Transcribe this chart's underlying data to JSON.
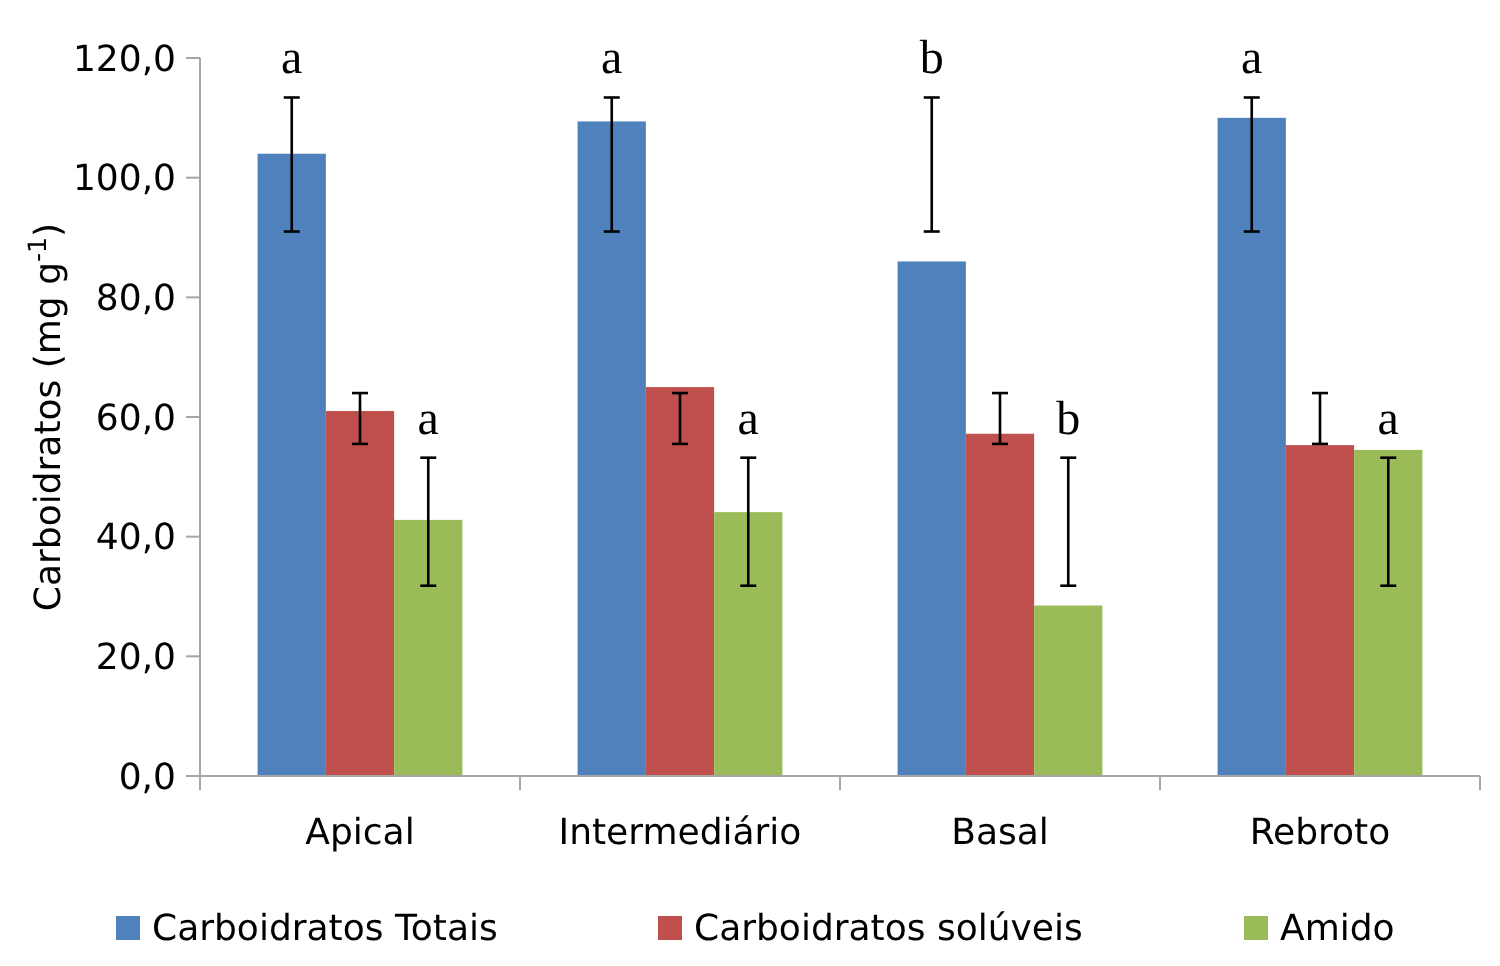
{
  "chart_data": {
    "type": "bar",
    "ylabel": "Carboidratos (mg g$^{-1}$)",
    "categories": [
      "Apical",
      "Intermediário",
      "Basal",
      "Rebroto"
    ],
    "series": [
      {
        "name": "Carboidratos Totais",
        "color": "#4f81bd",
        "values": [
          104,
          109.4,
          86,
          110
        ],
        "errors": [
          [
            91,
            113.4
          ],
          [
            91,
            113.4
          ],
          [
            91,
            113.4
          ],
          [
            91,
            113.4
          ]
        ]
      },
      {
        "name": "Carboidratos solúveis",
        "color": "#c0504d",
        "values": [
          61,
          65,
          57.2,
          55.3
        ],
        "errors": [
          [
            55.5,
            64
          ],
          [
            55.5,
            64
          ],
          [
            55.5,
            64
          ],
          [
            55.5,
            64
          ]
        ]
      },
      {
        "name": "Amido",
        "color": "#9bbb59",
        "values": [
          42.8,
          44.1,
          28.5,
          54.5
        ],
        "errors": [
          [
            31.8,
            53.2
          ],
          [
            31.8,
            53.2
          ],
          [
            31.8,
            53.2
          ],
          [
            31.8,
            53.2
          ]
        ]
      }
    ],
    "ylim": [
      0,
      120
    ],
    "yticks": [
      {
        "value": 0,
        "label": "0,0"
      },
      {
        "value": 20,
        "label": "20,0"
      },
      {
        "value": 40,
        "label": "40,0"
      },
      {
        "value": 60,
        "label": "60,0"
      },
      {
        "value": 80,
        "label": "80,0"
      },
      {
        "value": 100,
        "label": "100,0"
      },
      {
        "value": 120,
        "label": "120,0"
      }
    ],
    "annotations": [
      "a",
      "a",
      "a",
      "a",
      "b",
      "b",
      "a",
      "a"
    ],
    "legend": "bottom",
    "grid": false
  }
}
